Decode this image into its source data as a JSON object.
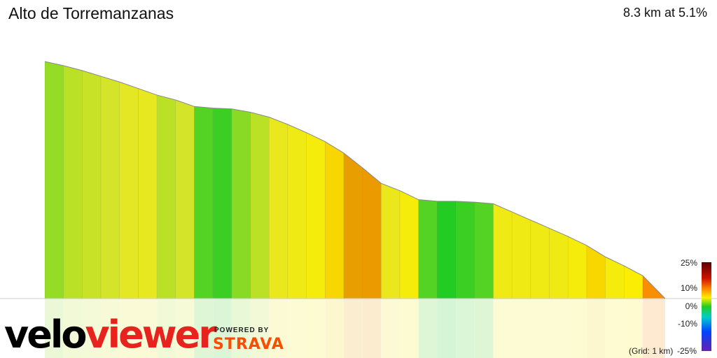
{
  "header": {
    "title": "Alto de Torremanzanas",
    "summary": "8.3 km at 5.1%"
  },
  "chart_data": {
    "type": "area",
    "title": "Alto de Torremanzanas",
    "xlabel": "",
    "ylabel": "",
    "x_unit": "km",
    "y_unit": "m",
    "grid": "1 km",
    "note": "(Grid: 1 km)",
    "distance_km": 8.3,
    "avg_grade_pct": 5.1,
    "profile_x_km": [
      0,
      0.25,
      0.5,
      0.75,
      1.0,
      1.25,
      1.5,
      1.75,
      2.0,
      2.25,
      2.5,
      2.75,
      3.0,
      3.25,
      3.5,
      3.75,
      4.0,
      4.25,
      4.5,
      4.75,
      5.0,
      5.25,
      5.5,
      5.75,
      6.0,
      6.25,
      6.5,
      6.75,
      7.0,
      7.25,
      7.5,
      7.75,
      8.0,
      8.3
    ],
    "profile_elev_m": [
      790,
      785,
      779,
      772,
      765,
      757,
      749,
      743,
      735,
      733,
      732,
      728,
      722,
      713,
      703,
      692,
      678,
      660,
      641,
      632,
      621,
      619,
      619,
      618,
      616,
      606,
      596,
      586,
      576,
      565,
      551,
      540,
      528,
      500
    ],
    "segment_grades_pct": [
      1.8,
      2.4,
      2.6,
      2.8,
      3.2,
      3.4,
      2.4,
      2.8,
      0.8,
      0.4,
      1.6,
      2.4,
      3.6,
      4.0,
      4.4,
      5.6,
      7.2,
      7.6,
      3.6,
      4.4,
      0.8,
      0.0,
      0.4,
      0.8,
      4.0,
      4.0,
      4.0,
      4.0,
      4.4,
      5.6,
      4.4,
      4.8,
      9.3
    ],
    "legend": {
      "ticks": [
        "25%",
        "10%",
        "0%",
        "-10%",
        "-25%"
      ]
    }
  },
  "branding": {
    "velo": "velo",
    "viewer": "viewer",
    "powered_by": "POWERED BY",
    "strava": "STRAVA"
  }
}
